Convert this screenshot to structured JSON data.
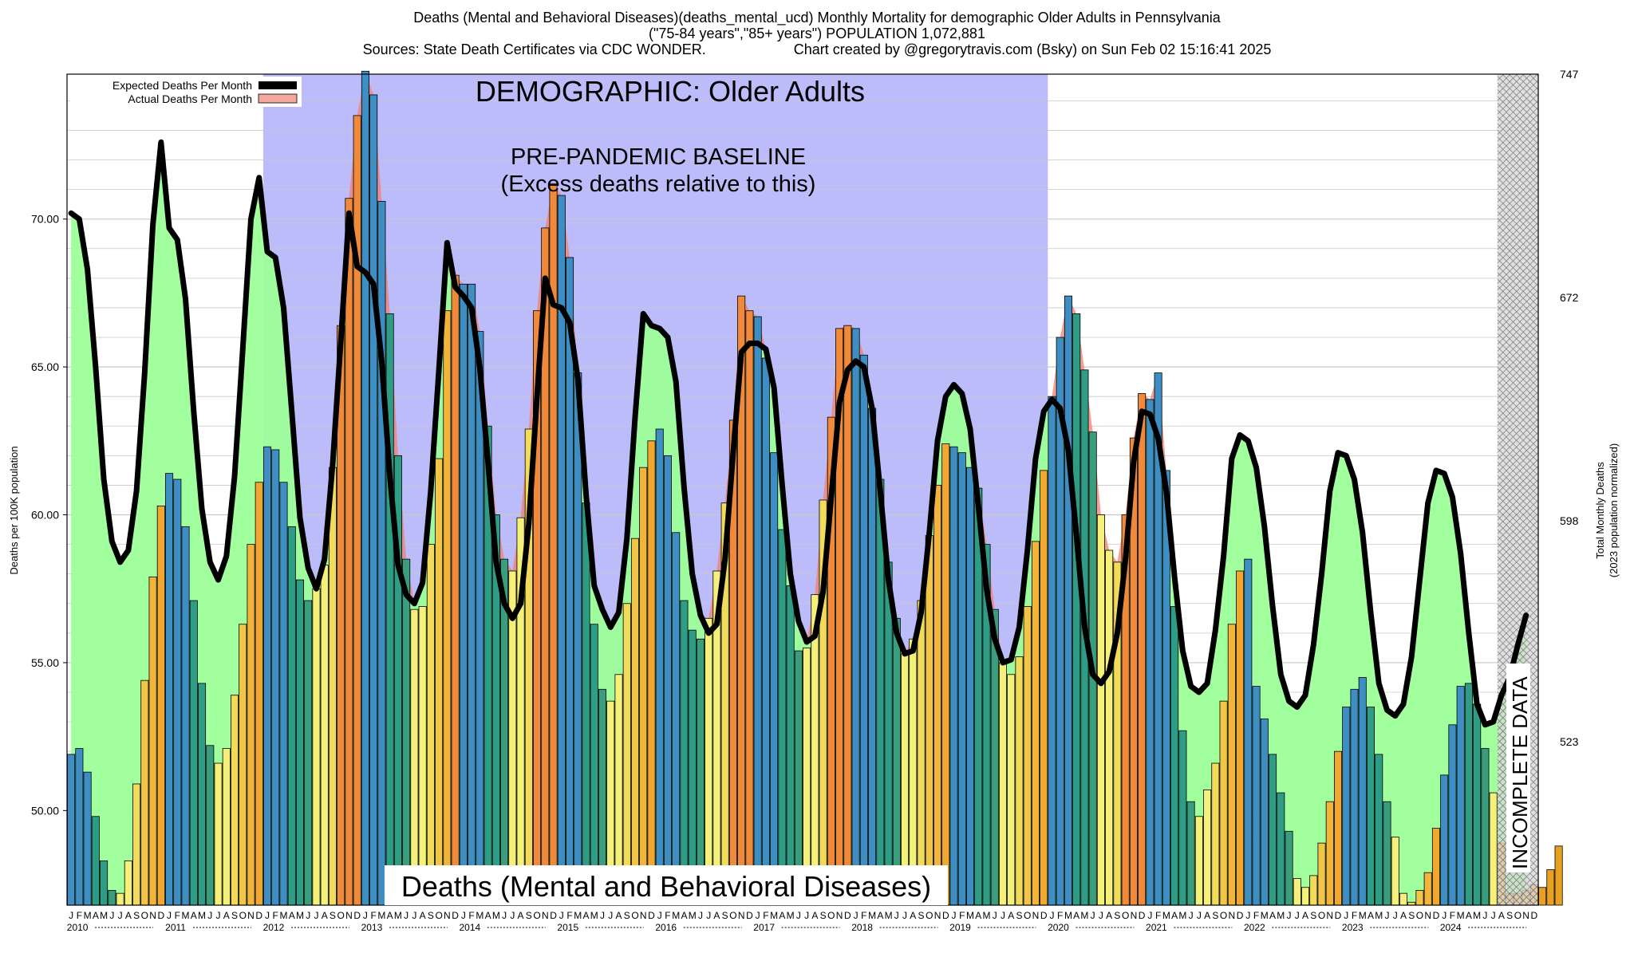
{
  "header": {
    "line1": "Deaths (Mental and Behavioral Diseases)(deaths_mental_ucd) Monthly Mortality for demographic Older Adults in Pennsylvania",
    "line2": "(\"75-84 years\",\"85+ years\") POPULATION 1,072,881",
    "line3_left": "Sources: State Death Certificates via CDC WONDER.",
    "line3_right": "Chart created by @gregorytravis.com (Bsky) on Sun Feb 02 15:16:41 2025"
  },
  "chart_data": {
    "type": "bar",
    "title": "Deaths (Mental and Behavioral Diseases)",
    "demographic_banner": "DEMOGRAPHIC: Older Adults",
    "baseline_label_line1": "PRE-PANDEMIC BASELINE",
    "baseline_label_line2": "(Excess deaths relative to this)",
    "incomplete_label": "INCOMPLETE DATA",
    "ylabel_left": "Deaths per 100K population",
    "ylabel_right_line1": "Total Monthly Deaths",
    "ylabel_right_line2": "(2023 population normalized)",
    "ylim": [
      46.8,
      74.9
    ],
    "yticks_left": [
      50.0,
      55.0,
      60.0,
      65.0,
      70.0
    ],
    "yticks_left_labels": [
      "50.00",
      "55.00",
      "60.00",
      "65.00",
      "70.00"
    ],
    "yticks_right": [
      523,
      598,
      672,
      747
    ],
    "grid": true,
    "legend_position": "top-left",
    "legend": [
      "Expected Deaths Per Month",
      "Actual Deaths Per Month"
    ],
    "month_letters": [
      "J",
      "F",
      "M",
      "A",
      "M",
      "J",
      "J",
      "A",
      "S",
      "O",
      "N",
      "D"
    ],
    "years": [
      "2010",
      "2011",
      "2012",
      "2013",
      "2014",
      "2015",
      "2016",
      "2017",
      "2018",
      "2019",
      "2020",
      "2021",
      "2022",
      "2023",
      "2024"
    ],
    "baseline_period": [
      "2012-01",
      "2019-12"
    ],
    "incomplete_from": "2024-08",
    "series": [
      {
        "name": "Actual Deaths Per Month",
        "values": [
          51.9,
          52.1,
          51.3,
          49.8,
          48.3,
          47.3,
          47.2,
          48.3,
          50.9,
          54.4,
          57.9,
          60.3,
          61.4,
          61.2,
          59.6,
          57.1,
          54.3,
          52.2,
          51.6,
          52.1,
          53.9,
          56.3,
          59.0,
          61.1,
          62.3,
          62.2,
          61.1,
          59.6,
          57.8,
          57.1,
          57.5,
          58.3,
          61.6,
          66.4,
          70.7,
          73.5,
          75.0,
          74.2,
          70.6,
          66.8,
          62.0,
          58.5,
          56.8,
          56.9,
          59.0,
          61.9,
          66.9,
          68.1,
          67.8,
          67.8,
          66.2,
          63.0,
          60.0,
          58.5,
          58.1,
          59.9,
          62.9,
          66.9,
          69.7,
          71.2,
          70.8,
          68.7,
          64.8,
          60.4,
          56.3,
          54.1,
          53.7,
          54.6,
          57.0,
          59.2,
          61.6,
          62.5,
          62.9,
          62.0,
          59.4,
          57.1,
          56.1,
          55.8,
          56.5,
          58.1,
          60.4,
          63.2,
          67.4,
          66.9,
          66.7,
          65.3,
          62.1,
          59.5,
          57.6,
          55.4,
          55.5,
          57.3,
          60.5,
          63.3,
          66.3,
          66.4,
          66.3,
          65.4,
          63.6,
          61.2,
          58.4,
          56.5,
          55.3,
          55.8,
          57.1,
          59.3,
          61.0,
          62.4,
          62.3,
          62.1,
          61.6,
          60.9,
          59.0,
          56.8,
          55.0,
          54.6,
          55.2,
          56.9,
          59.1,
          61.5,
          64.0,
          66.0,
          67.4,
          66.8,
          64.9,
          62.8,
          60.0,
          58.8,
          58.4,
          60.0,
          62.6,
          64.1,
          63.9,
          64.8,
          61.5,
          56.9,
          52.7,
          50.3,
          49.8,
          50.7,
          51.6,
          53.7,
          56.3,
          58.1,
          58.5,
          54.2,
          53.1,
          51.9,
          50.6,
          49.3,
          47.7,
          47.4,
          47.8,
          48.9,
          50.3,
          52.0,
          53.5,
          54.1,
          54.5,
          53.5,
          51.9,
          50.3,
          49.1,
          47.2,
          46.9,
          47.3,
          47.9,
          49.4,
          51.2,
          52.9,
          54.2,
          54.3,
          53.6,
          52.1,
          50.6,
          48.9,
          47.2,
          47.2,
          47.3,
          47.5,
          47.4,
          48.0,
          48.8
        ]
      },
      {
        "name": "Expected Deaths Per Month",
        "values": [
          70.2,
          70.0,
          68.3,
          65.0,
          61.2,
          59.1,
          58.4,
          58.8,
          60.8,
          64.8,
          69.8,
          72.6,
          69.7,
          69.3,
          67.3,
          63.5,
          60.2,
          58.4,
          57.8,
          58.6,
          61.3,
          65.6,
          70.0,
          71.4,
          68.9,
          68.7,
          67.0,
          63.5,
          59.9,
          58.2,
          57.5,
          58.5,
          61.7,
          65.9,
          70.2,
          68.4,
          68.2,
          67.8,
          65.2,
          61.3,
          58.3,
          57.3,
          57.0,
          57.7,
          60.8,
          64.9,
          69.2,
          67.7,
          67.4,
          67.0,
          65.0,
          61.8,
          58.4,
          57.0,
          56.5,
          57.0,
          59.7,
          64.0,
          68.0,
          67.1,
          67.0,
          66.5,
          64.6,
          60.7,
          57.6,
          56.8,
          56.2,
          56.7,
          59.2,
          63.3,
          66.8,
          66.4,
          66.3,
          66.0,
          64.5,
          60.9,
          58.0,
          56.6,
          56.0,
          56.3,
          58.5,
          62.1,
          65.5,
          65.8,
          65.8,
          65.6,
          64.3,
          61.0,
          58.0,
          56.4,
          55.7,
          55.9,
          57.4,
          60.6,
          63.8,
          64.9,
          65.2,
          65.0,
          63.6,
          60.8,
          57.8,
          56.0,
          55.3,
          55.4,
          56.7,
          59.4,
          62.5,
          64.0,
          64.4,
          64.1,
          62.9,
          60.3,
          57.5,
          55.8,
          55.0,
          55.1,
          56.2,
          58.8,
          61.9,
          63.5,
          63.9,
          63.6,
          62.2,
          59.3,
          56.2,
          54.6,
          54.3,
          54.7,
          56.0,
          58.5,
          61.8,
          63.5,
          63.4,
          62.6,
          60.8,
          57.9,
          55.4,
          54.2,
          54.0,
          54.3,
          56.1,
          58.6,
          61.9,
          62.7,
          62.5,
          61.6,
          59.6,
          56.9,
          54.6,
          53.7,
          53.5,
          53.9,
          55.6,
          58.0,
          60.8,
          62.1,
          62.0,
          61.2,
          59.4,
          56.7,
          54.3,
          53.4,
          53.2,
          53.6,
          55.2,
          57.8,
          60.4,
          61.5,
          61.4,
          60.6,
          58.7,
          56.0,
          53.6,
          52.9,
          53.0,
          53.9,
          54.5,
          55.6,
          56.6
        ]
      }
    ]
  }
}
